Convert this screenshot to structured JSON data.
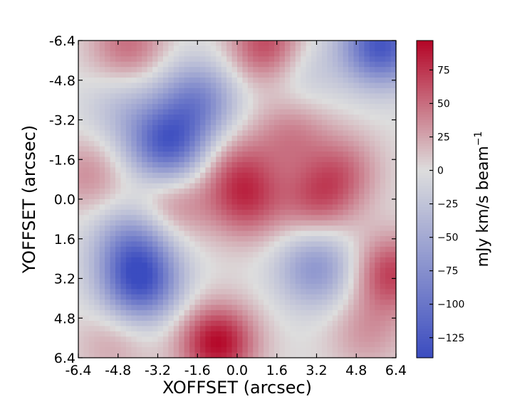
{
  "chart_data": {
    "type": "heatmap",
    "title": "",
    "xlabel": "XOFFSET (arcsec)",
    "ylabel": "YOFFSET (arcsec)",
    "xlim": [
      -6.4,
      6.4
    ],
    "ylim": [
      6.4,
      -6.4
    ],
    "x_ticks": [
      "-6.4",
      "-4.8",
      "-3.2",
      "-1.6",
      "0.0",
      "1.6",
      "3.2",
      "4.8",
      "6.4"
    ],
    "y_ticks": [
      "-6.4",
      "-4.8",
      "-3.2",
      "-1.6",
      "0.0",
      "1.6",
      "3.2",
      "4.8",
      "6.4"
    ],
    "colormap": "coolwarm",
    "colors": {
      "low": "#3b4cc0",
      "mid": "#dddddd",
      "high": "#b40426"
    },
    "colorbar": {
      "label_text": "mJy km/s beam",
      "label_exponent": "−1",
      "range": [
        -140,
        97
      ],
      "ticks": [
        "75",
        "50",
        "25",
        "0",
        "−25",
        "−50",
        "−75",
        "−100",
        "−125"
      ],
      "tick_values": [
        75,
        50,
        25,
        0,
        -25,
        -50,
        -75,
        -100,
        -125
      ]
    },
    "features": [
      {
        "x": 5.8,
        "y": -6.2,
        "value": -130
      },
      {
        "x": -2.8,
        "y": -2.2,
        "value": -120
      },
      {
        "x": -1.6,
        "y": -4.0,
        "value": -80
      },
      {
        "x": -3.9,
        "y": 3.4,
        "value": -120
      },
      {
        "x": -4.2,
        "y": 1.8,
        "value": -70
      },
      {
        "x": 3.2,
        "y": 2.8,
        "value": -70
      },
      {
        "x": -4.6,
        "y": -3.6,
        "value": -30
      },
      {
        "x": 2.6,
        "y": -5.2,
        "value": -25
      },
      {
        "x": -0.8,
        "y": 5.8,
        "value": 95
      },
      {
        "x": 6.2,
        "y": 3.0,
        "value": 70
      },
      {
        "x": 1.2,
        "y": -6.2,
        "value": 70
      },
      {
        "x": -4.4,
        "y": -6.2,
        "value": 50
      },
      {
        "x": 3.2,
        "y": 0.0,
        "value": 55
      },
      {
        "x": 0.4,
        "y": 0.2,
        "value": 55
      },
      {
        "x": 0.0,
        "y": -1.2,
        "value": 45
      },
      {
        "x": 4.2,
        "y": -1.2,
        "value": 45
      },
      {
        "x": 2.2,
        "y": -2.6,
        "value": 40
      },
      {
        "x": -6.0,
        "y": -1.0,
        "value": 35
      },
      {
        "x": -2.6,
        "y": 0.2,
        "value": 40
      },
      {
        "x": 5.2,
        "y": 5.4,
        "value": 30
      },
      {
        "x": -5.0,
        "y": 5.8,
        "value": 25
      },
      {
        "x": 3.2,
        "y": -1.2,
        "value": -10
      }
    ]
  }
}
